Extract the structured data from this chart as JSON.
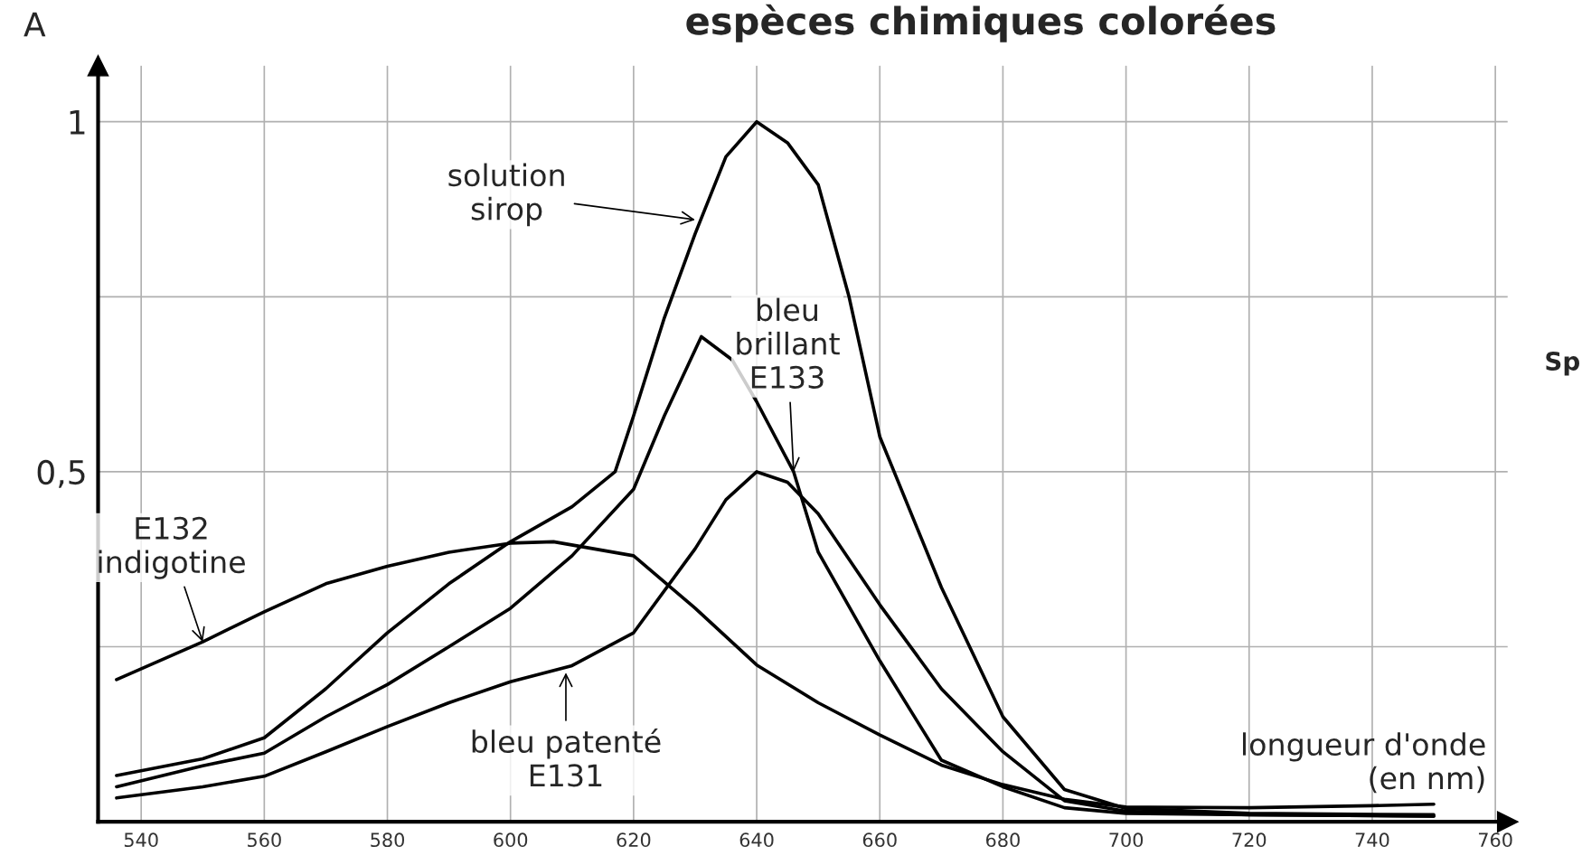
{
  "chart_data": {
    "type": "line",
    "title": "espèces chimiques colorées",
    "xlabel": "longueur d'onde\n(en nm)",
    "ylabel": "A",
    "xlim": [
      533,
      762
    ],
    "ylim": [
      0,
      1.08
    ],
    "xticks": [
      540,
      560,
      580,
      600,
      620,
      640,
      660,
      680,
      700,
      720,
      740,
      760
    ],
    "yticks": [
      {
        "value": 0.25,
        "label": null
      },
      {
        "value": 0.5,
        "label": "0,5"
      },
      {
        "value": 0.75,
        "label": null
      },
      1
    ],
    "grid": true,
    "marker": "none",
    "line_style": "solid",
    "series": [
      {
        "color": "#000000",
        "x": [
          536,
          550,
          560,
          570,
          580,
          590,
          600,
          610,
          617,
          620,
          625,
          630,
          635,
          640,
          645,
          650,
          655,
          660,
          670,
          680,
          690,
          700,
          720,
          750
        ],
        "values": [
          0.066,
          0.09,
          0.12,
          0.19,
          0.27,
          0.34,
          0.4,
          0.45,
          0.5,
          0.58,
          0.72,
          0.84,
          0.95,
          1.0,
          0.97,
          0.91,
          0.75,
          0.55,
          0.335,
          0.15,
          0.046,
          0.019,
          0.012,
          0.01
        ]
      },
      {
        "color": "#000000",
        "x": [
          536,
          550,
          560,
          570,
          580,
          590,
          600,
          610,
          620,
          625,
          631,
          636,
          640,
          646,
          650,
          660,
          670,
          680,
          690,
          700,
          720,
          750
        ],
        "values": [
          0.05,
          0.08,
          0.098,
          0.15,
          0.196,
          0.25,
          0.305,
          0.38,
          0.475,
          0.58,
          0.693,
          0.66,
          0.6,
          0.5,
          0.385,
          0.23,
          0.088,
          0.05,
          0.02,
          0.012,
          0.01,
          0.008
        ]
      },
      {
        "color": "#000000",
        "x": [
          536,
          550,
          560,
          570,
          580,
          590,
          600,
          610,
          620,
          630,
          635,
          640,
          645,
          650,
          660,
          670,
          680,
          690,
          700,
          720,
          750
        ],
        "values": [
          0.034,
          0.05,
          0.065,
          0.1,
          0.136,
          0.17,
          0.2,
          0.223,
          0.27,
          0.39,
          0.46,
          0.5,
          0.485,
          0.44,
          0.31,
          0.19,
          0.1,
          0.03,
          0.015,
          0.01,
          0.008
        ]
      },
      {
        "color": "#000000",
        "x": [
          536,
          550,
          560,
          570,
          580,
          590,
          600,
          607,
          620,
          630,
          640,
          650,
          660,
          670,
          680,
          690,
          700,
          720,
          740,
          750
        ],
        "values": [
          0.203,
          0.257,
          0.3,
          0.34,
          0.365,
          0.385,
          0.398,
          0.4,
          0.38,
          0.305,
          0.224,
          0.17,
          0.124,
          0.081,
          0.053,
          0.032,
          0.021,
          0.02,
          0.023,
          0.025
        ]
      }
    ],
    "annotations": [
      {
        "text": "solution\nsirop",
        "x": 630,
        "y": 0.86
      },
      {
        "text": "bleu\nbrillant\nE133",
        "x": 646,
        "y": 0.5
      },
      {
        "text": "E132\nindigotine",
        "x": 550,
        "y": 0.257
      },
      {
        "text": "bleu patenté\nE131",
        "x": 609,
        "y": 0.213
      },
      "Sp"
    ]
  }
}
